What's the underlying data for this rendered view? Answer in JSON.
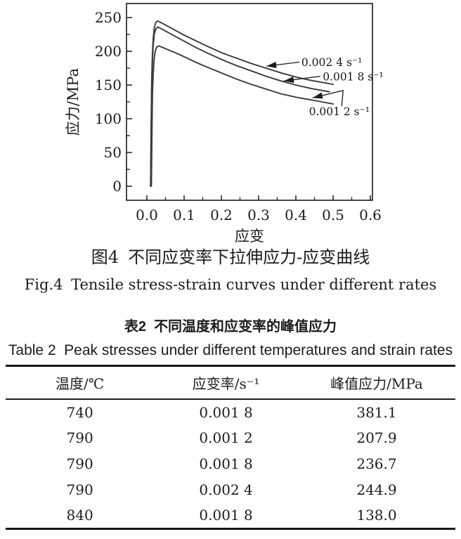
{
  "colors": {
    "ink": "#1b1b1b",
    "curve": "#3a3a3a",
    "background": "#ffffff"
  },
  "figure": {
    "caption_zh": {
      "label": "图4",
      "text": "不同应变率下拉伸应力-应变曲线"
    },
    "caption_en": {
      "label": "Fig.4",
      "text": "Tensile stress-strain curves under different rates"
    }
  },
  "chart_data": {
    "type": "line",
    "title": "",
    "xlabel": "应变",
    "ylabel": "应力/MPa",
    "xlim": [
      -0.055,
      0.606
    ],
    "ylim": [
      -21,
      271
    ],
    "grid": false,
    "legend": "arrow annotations on curves",
    "x_ticks": {
      "values": [
        0.0,
        0.1,
        0.2,
        0.3,
        0.4,
        0.5,
        0.6
      ],
      "labels": [
        "0.0",
        "0.1",
        "0.2",
        "0.3",
        "0.4",
        "0.5",
        "0.6"
      ],
      "minor_step": 0.05
    },
    "y_ticks": {
      "values": [
        0,
        50,
        100,
        150,
        200,
        250
      ],
      "labels": [
        "0",
        "50",
        "100",
        "150",
        "200",
        "250"
      ],
      "minor_step": 25
    },
    "series": [
      {
        "name": "0.002 4 s⁻¹",
        "strain_rate": "0.002 4",
        "peak_stress_MPa": 244.9,
        "points": [
          [
            0.01,
            0
          ],
          [
            0.011,
            60
          ],
          [
            0.012,
            118
          ],
          [
            0.013,
            160
          ],
          [
            0.015,
            196
          ],
          [
            0.017,
            219
          ],
          [
            0.02,
            235
          ],
          [
            0.024,
            243
          ],
          [
            0.029,
            245
          ],
          [
            0.04,
            242
          ],
          [
            0.06,
            236
          ],
          [
            0.08,
            230
          ],
          [
            0.1,
            224
          ],
          [
            0.13,
            216
          ],
          [
            0.16,
            208
          ],
          [
            0.2,
            198
          ],
          [
            0.24,
            190
          ],
          [
            0.28,
            182
          ],
          [
            0.32,
            175
          ],
          [
            0.36,
            168
          ],
          [
            0.4,
            162
          ],
          [
            0.44,
            157
          ],
          [
            0.47,
            154
          ],
          [
            0.5,
            151
          ]
        ]
      },
      {
        "name": "0.001 8 s⁻¹",
        "strain_rate": "0.001 8",
        "peak_stress_MPa": 236.7,
        "points": [
          [
            0.01,
            0
          ],
          [
            0.011,
            55
          ],
          [
            0.012,
            108
          ],
          [
            0.013,
            150
          ],
          [
            0.015,
            186
          ],
          [
            0.017,
            209
          ],
          [
            0.02,
            226
          ],
          [
            0.024,
            233
          ],
          [
            0.029,
            236
          ],
          [
            0.04,
            233
          ],
          [
            0.06,
            227
          ],
          [
            0.08,
            221
          ],
          [
            0.1,
            215
          ],
          [
            0.13,
            206
          ],
          [
            0.16,
            198
          ],
          [
            0.2,
            188
          ],
          [
            0.24,
            179
          ],
          [
            0.28,
            171
          ],
          [
            0.32,
            163
          ],
          [
            0.36,
            156
          ],
          [
            0.4,
            150
          ],
          [
            0.44,
            145
          ],
          [
            0.47,
            142
          ],
          [
            0.49,
            140
          ]
        ]
      },
      {
        "name": "0.001 2 s⁻¹",
        "strain_rate": "0.001 2",
        "peak_stress_MPa": 207.9,
        "points": [
          [
            0.012,
            0
          ],
          [
            0.013,
            48
          ],
          [
            0.014,
            95
          ],
          [
            0.015,
            135
          ],
          [
            0.017,
            166
          ],
          [
            0.019,
            186
          ],
          [
            0.022,
            199
          ],
          [
            0.026,
            206
          ],
          [
            0.032,
            208
          ],
          [
            0.05,
            204
          ],
          [
            0.08,
            197
          ],
          [
            0.1,
            192
          ],
          [
            0.13,
            184
          ],
          [
            0.16,
            177
          ],
          [
            0.2,
            168
          ],
          [
            0.24,
            159
          ],
          [
            0.28,
            151
          ],
          [
            0.32,
            144
          ],
          [
            0.36,
            137
          ],
          [
            0.4,
            132
          ],
          [
            0.44,
            128
          ],
          [
            0.47,
            125
          ],
          [
            0.5,
            122
          ]
        ]
      }
    ],
    "annotations": [
      {
        "text": "0.002 4 s⁻¹",
        "line": [
          [
            0.41,
            184
          ],
          [
            0.321,
            178
          ]
        ],
        "label_at": [
          0.415,
          178
        ]
      },
      {
        "text": "0.001 8 s⁻¹",
        "line": [
          [
            0.466,
            163
          ],
          [
            0.368,
            156
          ]
        ],
        "label_at": [
          0.472,
          157
        ]
      },
      {
        "text": "0.001 2 s⁻¹",
        "line": [
          [
            0.523,
            119
          ],
          [
            0.527,
            142
          ],
          [
            0.445,
            131
          ]
        ],
        "label_at": [
          0.435,
          105
        ]
      }
    ]
  },
  "table": {
    "caption_zh": {
      "label": "表2",
      "text": "不同温度和应变率的峰值应力"
    },
    "caption_en": {
      "label": "Table 2",
      "text": "Peak stresses under different temperatures and strain rates"
    },
    "columns": [
      "温度/℃",
      "应变率/s⁻¹",
      "峰值应力/MPa"
    ],
    "rows": [
      [
        "740",
        "0.001 8",
        "381.1"
      ],
      [
        "790",
        "0.001 2",
        "207.9"
      ],
      [
        "790",
        "0.001 8",
        "236.7"
      ],
      [
        "790",
        "0.002 4",
        "244.9"
      ],
      [
        "840",
        "0.001 8",
        "138.0"
      ]
    ]
  }
}
